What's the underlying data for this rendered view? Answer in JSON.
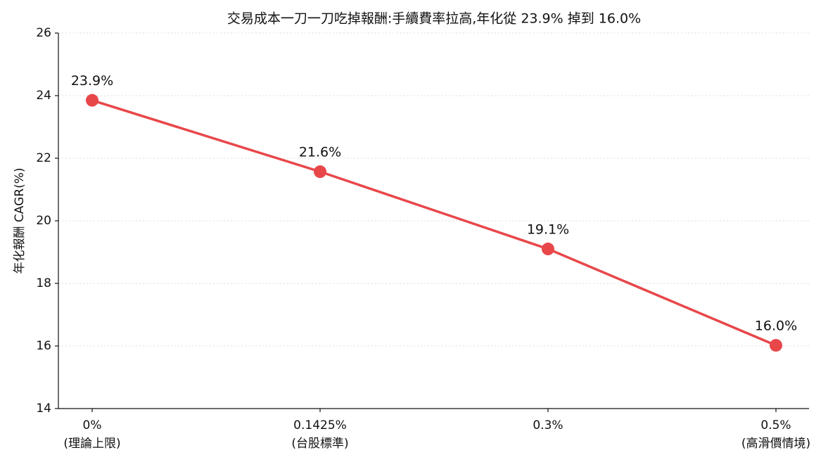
{
  "chart_data": {
    "type": "line",
    "title": "交易成本一刀一刀吃掉報酬:手續費率拉高,年化從 23.9% 掉到 16.0%",
    "y_label": "年化報酬 CAGR(%)",
    "categories": [
      [
        "0%",
        "(理論上限)"
      ],
      [
        "0.1425%",
        "(台股標準)"
      ],
      [
        "0.3%",
        null
      ],
      [
        "0.5%",
        "(高滑價情境)"
      ]
    ],
    "series": [
      {
        "name": "CAGR",
        "color": "#e8474a",
        "values": [
          23.85,
          21.57,
          19.1,
          16.02
        ],
        "value_labels": [
          "23.9%",
          "21.6%",
          "19.1%",
          "16.0%"
        ]
      }
    ],
    "ylim": [
      14,
      26
    ],
    "yticks": [
      14,
      16,
      18,
      20,
      22,
      24,
      26
    ],
    "grid": true
  }
}
